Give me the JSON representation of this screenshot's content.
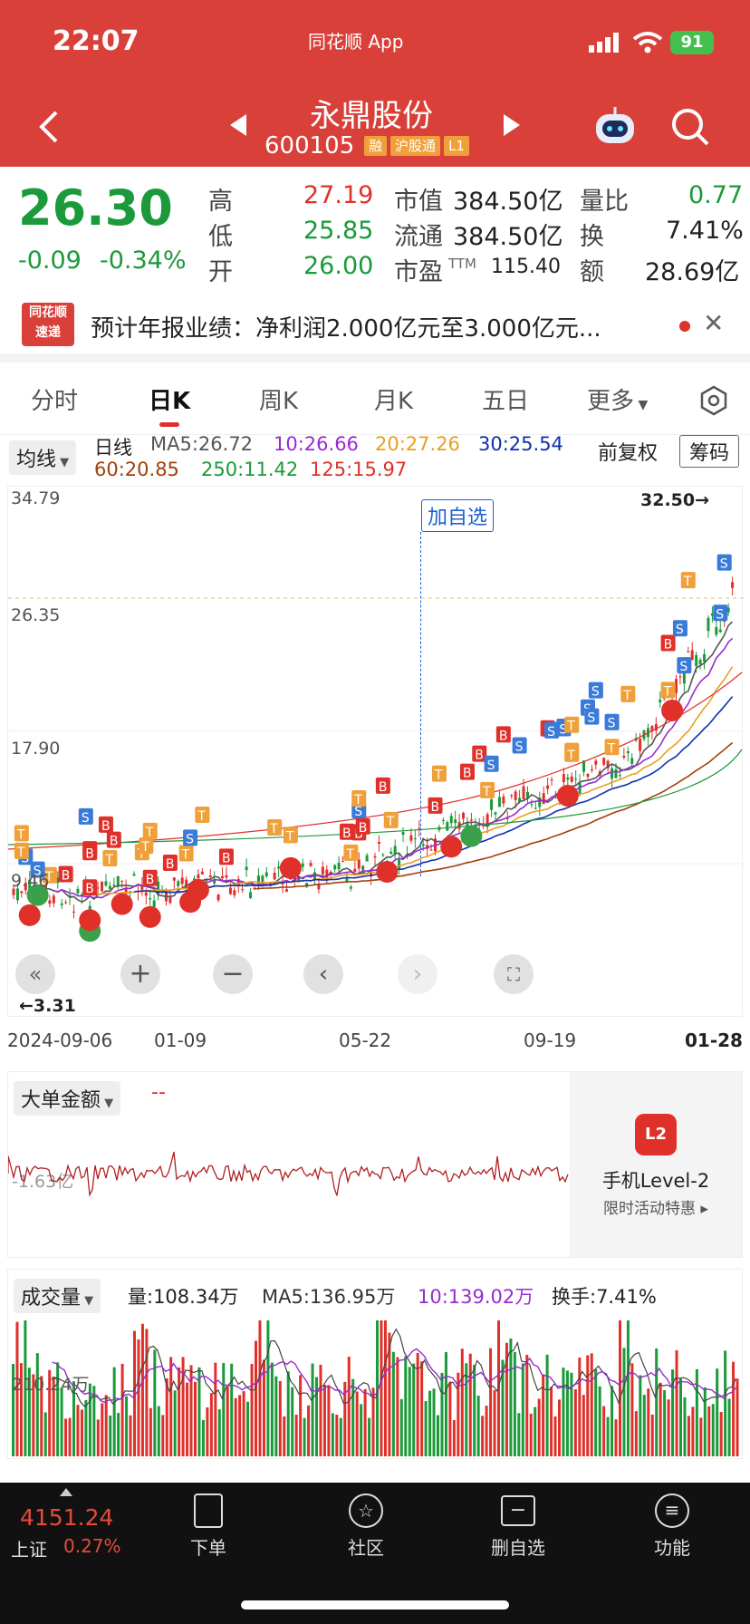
{
  "status": {
    "time": "22:07",
    "center": "同花顺 App",
    "battery": "91"
  },
  "nav": {
    "name": "永鼎股份",
    "code": "600105",
    "tags": [
      "融",
      "沪股通",
      "L1"
    ]
  },
  "quote": {
    "price": "26.30",
    "change": "-0.09",
    "pct": "-0.34%",
    "high_label": "高",
    "high": "27.19",
    "low_label": "低",
    "low": "25.85",
    "open_label": "开",
    "open": "26.00",
    "mcap_label": "市值",
    "mcap": "384.50亿",
    "float_label": "流通",
    "float": "384.50亿",
    "pe_label": "市盈",
    "pe_sup": "TTM",
    "pe": "115.40",
    "vr_label": "量比",
    "vr": "0.77",
    "turn_label": "换",
    "turn": "7.41%",
    "amt_label": "额",
    "amt": "28.69亿"
  },
  "news": {
    "logo_top": "同花顺",
    "logo_bottom": "速递",
    "text": "预计年报业绩：净利润2.000亿元至3.000亿元..."
  },
  "tabs": [
    "分时",
    "日K",
    "周K",
    "月K",
    "五日",
    "更多"
  ],
  "active_tab": "日K",
  "ma": {
    "selector": "均线",
    "period": "日线",
    "ma5": "MA5:26.72",
    "ma10": "10:26.66",
    "ma20": "20:27.26",
    "ma30": "30:25.54",
    "ma60": "60:20.85",
    "ma250": "250:11.42",
    "ma125": "125:15.97",
    "adjust": "前复权",
    "chip": "筹码"
  },
  "chart": {
    "y_ticks": [
      "34.79",
      "26.35",
      "17.90",
      "9.46"
    ],
    "x_ticks": [
      "2024-09-06",
      "01-09",
      "05-22",
      "09-19",
      "01-28"
    ],
    "max_label": "32.50",
    "min_label": "3.31",
    "add_fav": "加自选"
  },
  "bigorder": {
    "selector": "大单金额",
    "value": "--",
    "axis": "-1.63亿",
    "promo_title": "手机Level-2",
    "promo_sub": "限时活动特惠"
  },
  "volume": {
    "selector": "成交量",
    "vol": "量:108.34万",
    "ma5": "MA5:136.95万",
    "ma10": "10:139.02万",
    "turnover": "换手:7.41%",
    "axis": "210.24万"
  },
  "bottom": {
    "index_value": "4151.24",
    "index_name": "上证",
    "index_pct": "0.27%",
    "items": [
      "下单",
      "社区",
      "删自选",
      "功能"
    ]
  }
}
